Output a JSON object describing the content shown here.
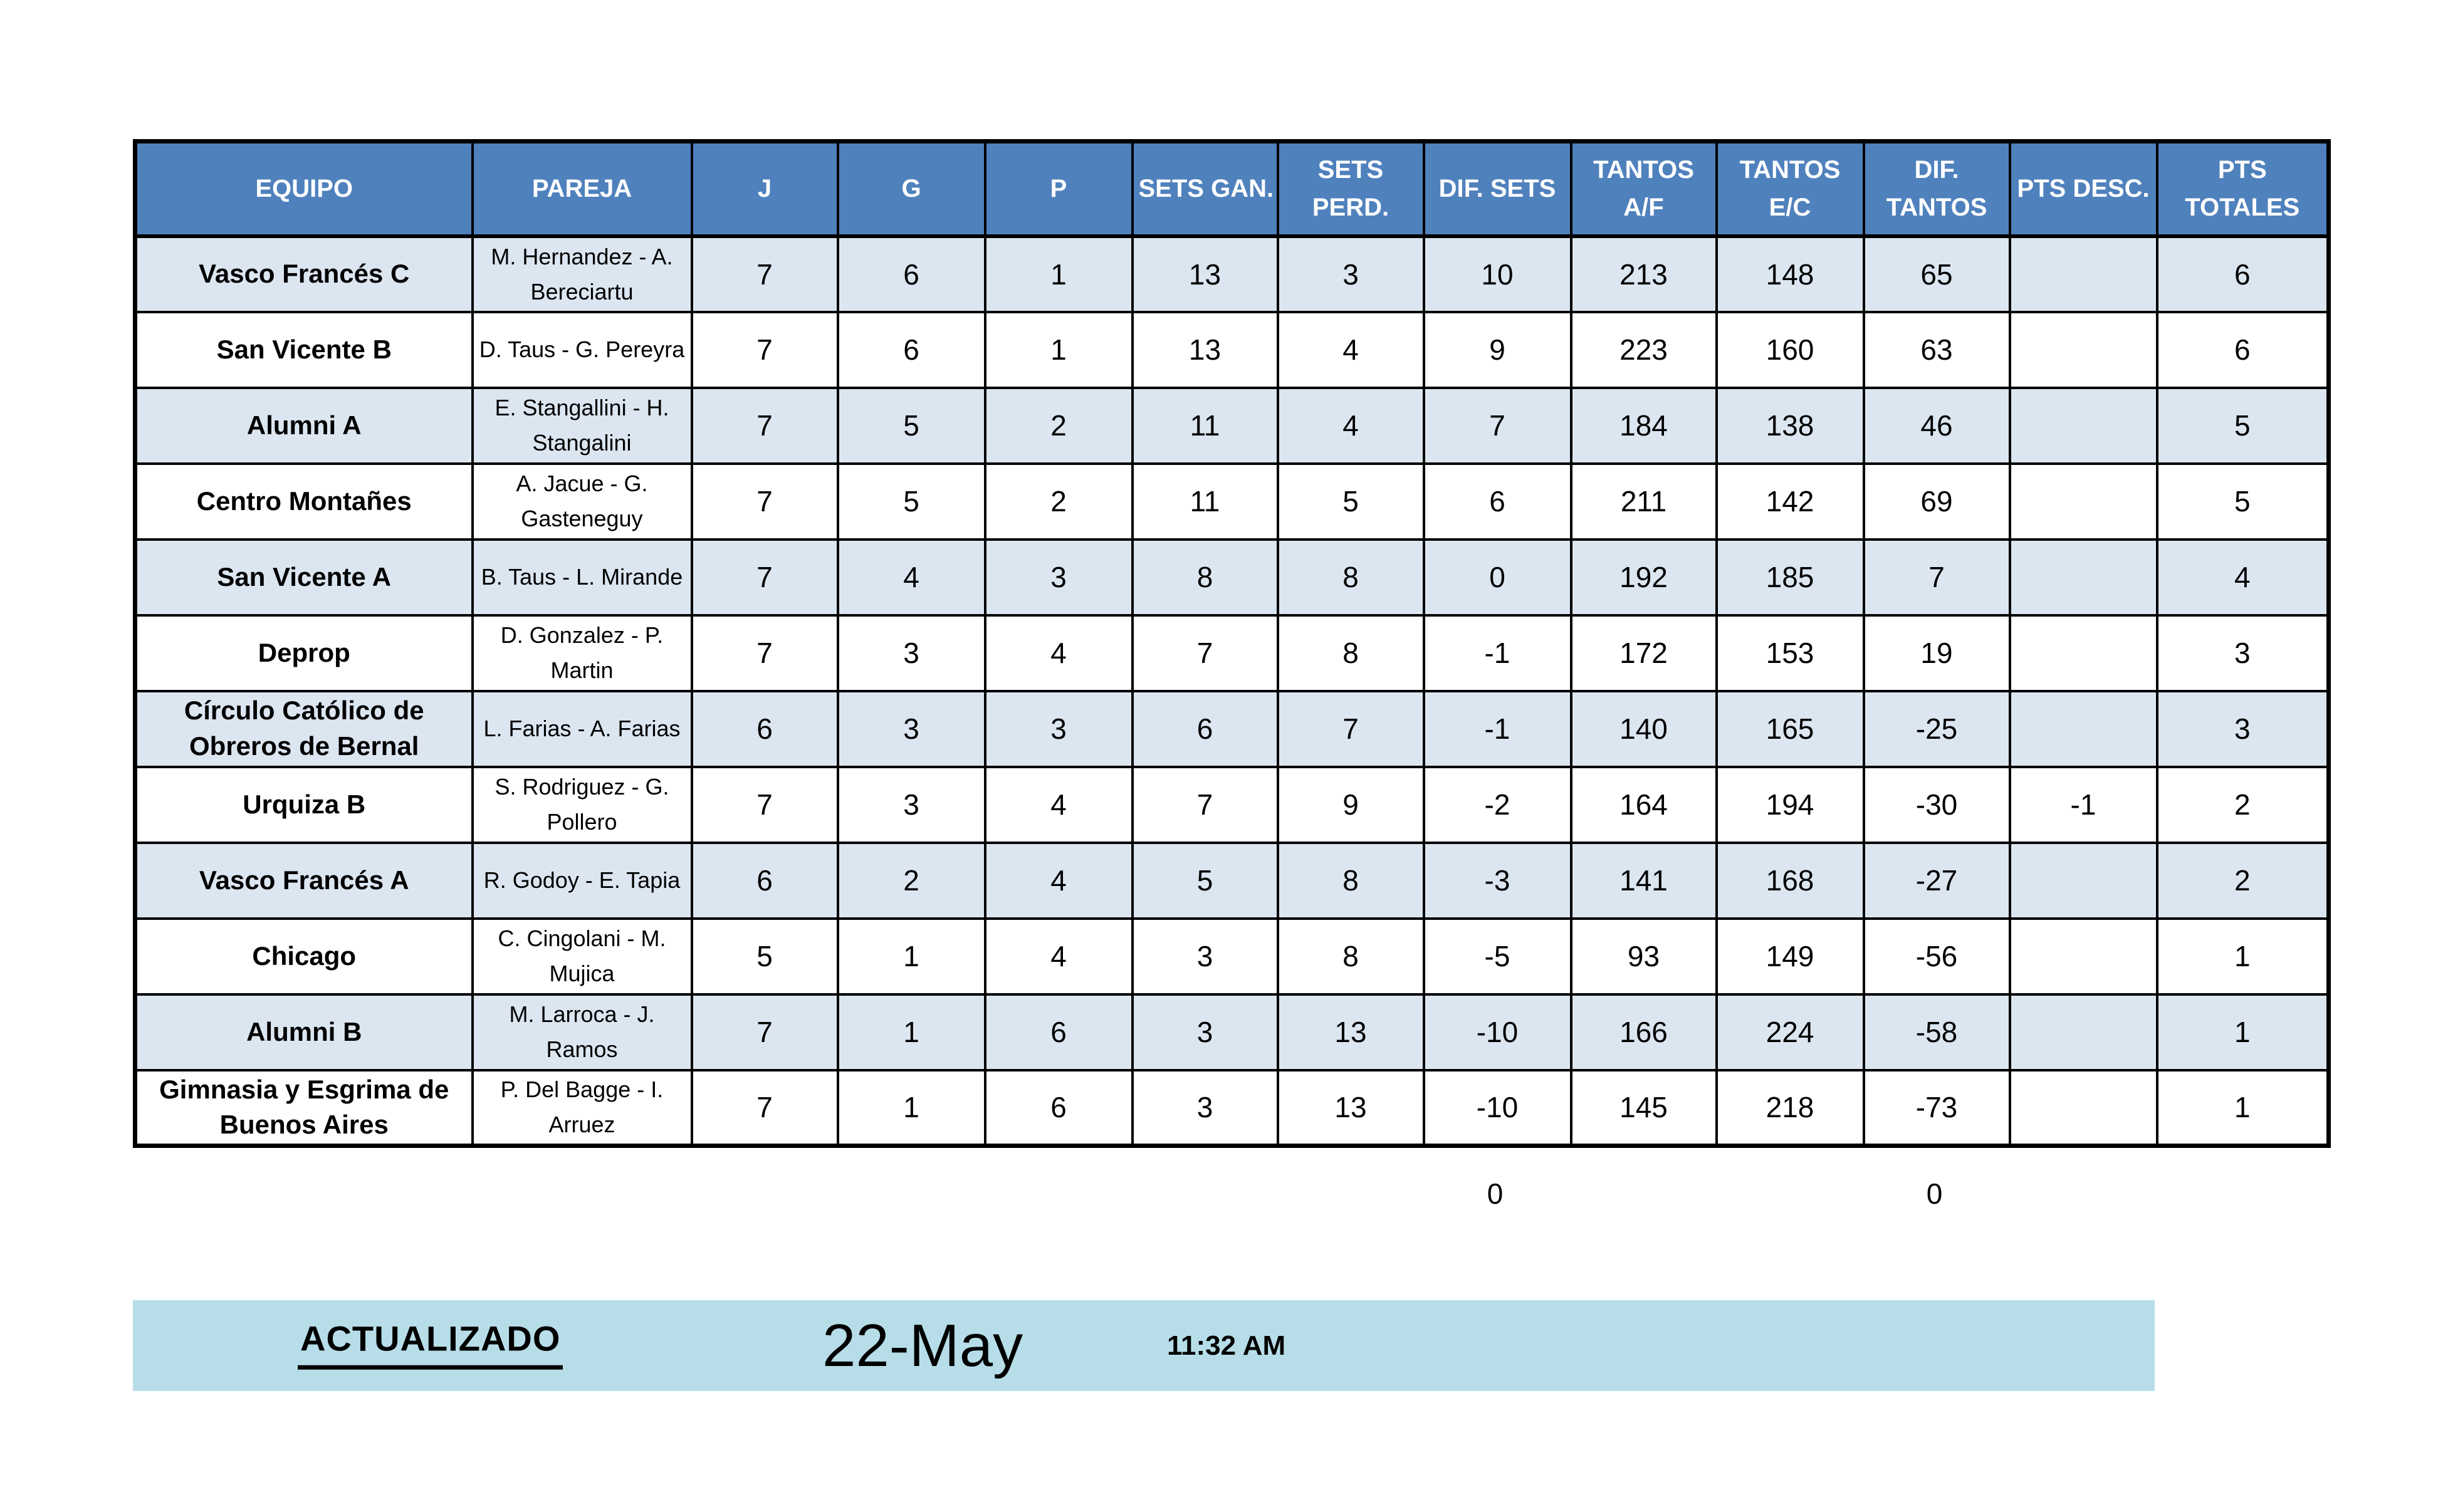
{
  "table": {
    "columns": [
      {
        "key": "equipo",
        "label": "EQUIPO"
      },
      {
        "key": "pareja",
        "label": "PAREJA"
      },
      {
        "key": "j",
        "label": "J"
      },
      {
        "key": "g",
        "label": "G"
      },
      {
        "key": "p",
        "label": "P"
      },
      {
        "key": "sets_gan",
        "label": "SETS GAN."
      },
      {
        "key": "sets_perd",
        "label": "SETS PERD."
      },
      {
        "key": "dif_sets",
        "label": "DIF. SETS"
      },
      {
        "key": "tantos_af",
        "label": "TANTOS A/F"
      },
      {
        "key": "tantos_ec",
        "label": "TANTOS E/C"
      },
      {
        "key": "dif_tantos",
        "label": "DIF. TANTOS"
      },
      {
        "key": "pts_desc",
        "label": "PTS DESC."
      },
      {
        "key": "pts_totales",
        "label": "PTS TOTALES"
      }
    ],
    "rows": [
      {
        "equipo": "Vasco Francés C",
        "pareja": "M. Hernandez - A. Bereciartu",
        "j": "7",
        "g": "6",
        "p": "1",
        "sets_gan": "13",
        "sets_perd": "3",
        "dif_sets": "10",
        "tantos_af": "213",
        "tantos_ec": "148",
        "dif_tantos": "65",
        "pts_desc": "",
        "pts_totales": "6"
      },
      {
        "equipo": "San Vicente B",
        "pareja": "D. Taus - G. Pereyra",
        "j": "7",
        "g": "6",
        "p": "1",
        "sets_gan": "13",
        "sets_perd": "4",
        "dif_sets": "9",
        "tantos_af": "223",
        "tantos_ec": "160",
        "dif_tantos": "63",
        "pts_desc": "",
        "pts_totales": "6"
      },
      {
        "equipo": "Alumni A",
        "pareja": "E. Stangallini - H. Stangalini",
        "j": "7",
        "g": "5",
        "p": "2",
        "sets_gan": "11",
        "sets_perd": "4",
        "dif_sets": "7",
        "tantos_af": "184",
        "tantos_ec": "138",
        "dif_tantos": "46",
        "pts_desc": "",
        "pts_totales": "5"
      },
      {
        "equipo": "Centro Montañes",
        "pareja": "A. Jacue - G. Gasteneguy",
        "j": "7",
        "g": "5",
        "p": "2",
        "sets_gan": "11",
        "sets_perd": "5",
        "dif_sets": "6",
        "tantos_af": "211",
        "tantos_ec": "142",
        "dif_tantos": "69",
        "pts_desc": "",
        "pts_totales": "5"
      },
      {
        "equipo": "San Vicente A",
        "pareja": "B. Taus - L. Mirande",
        "j": "7",
        "g": "4",
        "p": "3",
        "sets_gan": "8",
        "sets_perd": "8",
        "dif_sets": "0",
        "tantos_af": "192",
        "tantos_ec": "185",
        "dif_tantos": "7",
        "pts_desc": "",
        "pts_totales": "4"
      },
      {
        "equipo": "Deprop",
        "pareja": "D. Gonzalez - P. Martin",
        "j": "7",
        "g": "3",
        "p": "4",
        "sets_gan": "7",
        "sets_perd": "8",
        "dif_sets": "-1",
        "tantos_af": "172",
        "tantos_ec": "153",
        "dif_tantos": "19",
        "pts_desc": "",
        "pts_totales": "3"
      },
      {
        "equipo": "Círculo Católico de Obreros de Bernal",
        "pareja": "L. Farias - A. Farias",
        "j": "6",
        "g": "3",
        "p": "3",
        "sets_gan": "6",
        "sets_perd": "7",
        "dif_sets": "-1",
        "tantos_af": "140",
        "tantos_ec": "165",
        "dif_tantos": "-25",
        "pts_desc": "",
        "pts_totales": "3"
      },
      {
        "equipo": "Urquiza B",
        "pareja": "S. Rodriguez - G. Pollero",
        "j": "7",
        "g": "3",
        "p": "4",
        "sets_gan": "7",
        "sets_perd": "9",
        "dif_sets": "-2",
        "tantos_af": "164",
        "tantos_ec": "194",
        "dif_tantos": "-30",
        "pts_desc": "-1",
        "pts_totales": "2"
      },
      {
        "equipo": "Vasco Francés A",
        "pareja": "R. Godoy - E. Tapia",
        "j": "6",
        "g": "2",
        "p": "4",
        "sets_gan": "5",
        "sets_perd": "8",
        "dif_sets": "-3",
        "tantos_af": "141",
        "tantos_ec": "168",
        "dif_tantos": "-27",
        "pts_desc": "",
        "pts_totales": "2"
      },
      {
        "equipo": "Chicago",
        "pareja": "C. Cingolani - M. Mujica",
        "j": "5",
        "g": "1",
        "p": "4",
        "sets_gan": "3",
        "sets_perd": "8",
        "dif_sets": "-5",
        "tantos_af": "93",
        "tantos_ec": "149",
        "dif_tantos": "-56",
        "pts_desc": "",
        "pts_totales": "1"
      },
      {
        "equipo": "Alumni B",
        "pareja": "M. Larroca - J. Ramos",
        "j": "7",
        "g": "1",
        "p": "6",
        "sets_gan": "3",
        "sets_perd": "13",
        "dif_sets": "-10",
        "tantos_af": "166",
        "tantos_ec": "224",
        "dif_tantos": "-58",
        "pts_desc": "",
        "pts_totales": "1"
      },
      {
        "equipo": "Gimnasia y Esgrima de Buenos Aires",
        "pareja": "P. Del Bagge - I. Arruez",
        "j": "7",
        "g": "1",
        "p": "6",
        "sets_gan": "3",
        "sets_perd": "13",
        "dif_sets": "-10",
        "tantos_af": "145",
        "tantos_ec": "218",
        "dif_tantos": "-73",
        "pts_desc": "",
        "pts_totales": "1"
      }
    ]
  },
  "summary": {
    "dif_sets_total": "0",
    "dif_tantos_total": "0"
  },
  "footer": {
    "label": "ACTUALIZADO",
    "date": "22-May",
    "time": "11:32 AM"
  },
  "colors": {
    "header_bg": "#4F81BD",
    "header_text": "#FFFFFF",
    "row_alt_bg": "#DCE6F1",
    "row_bg": "#FFFFFF",
    "footer_bg": "#B7DEE8",
    "border": "#000000"
  }
}
